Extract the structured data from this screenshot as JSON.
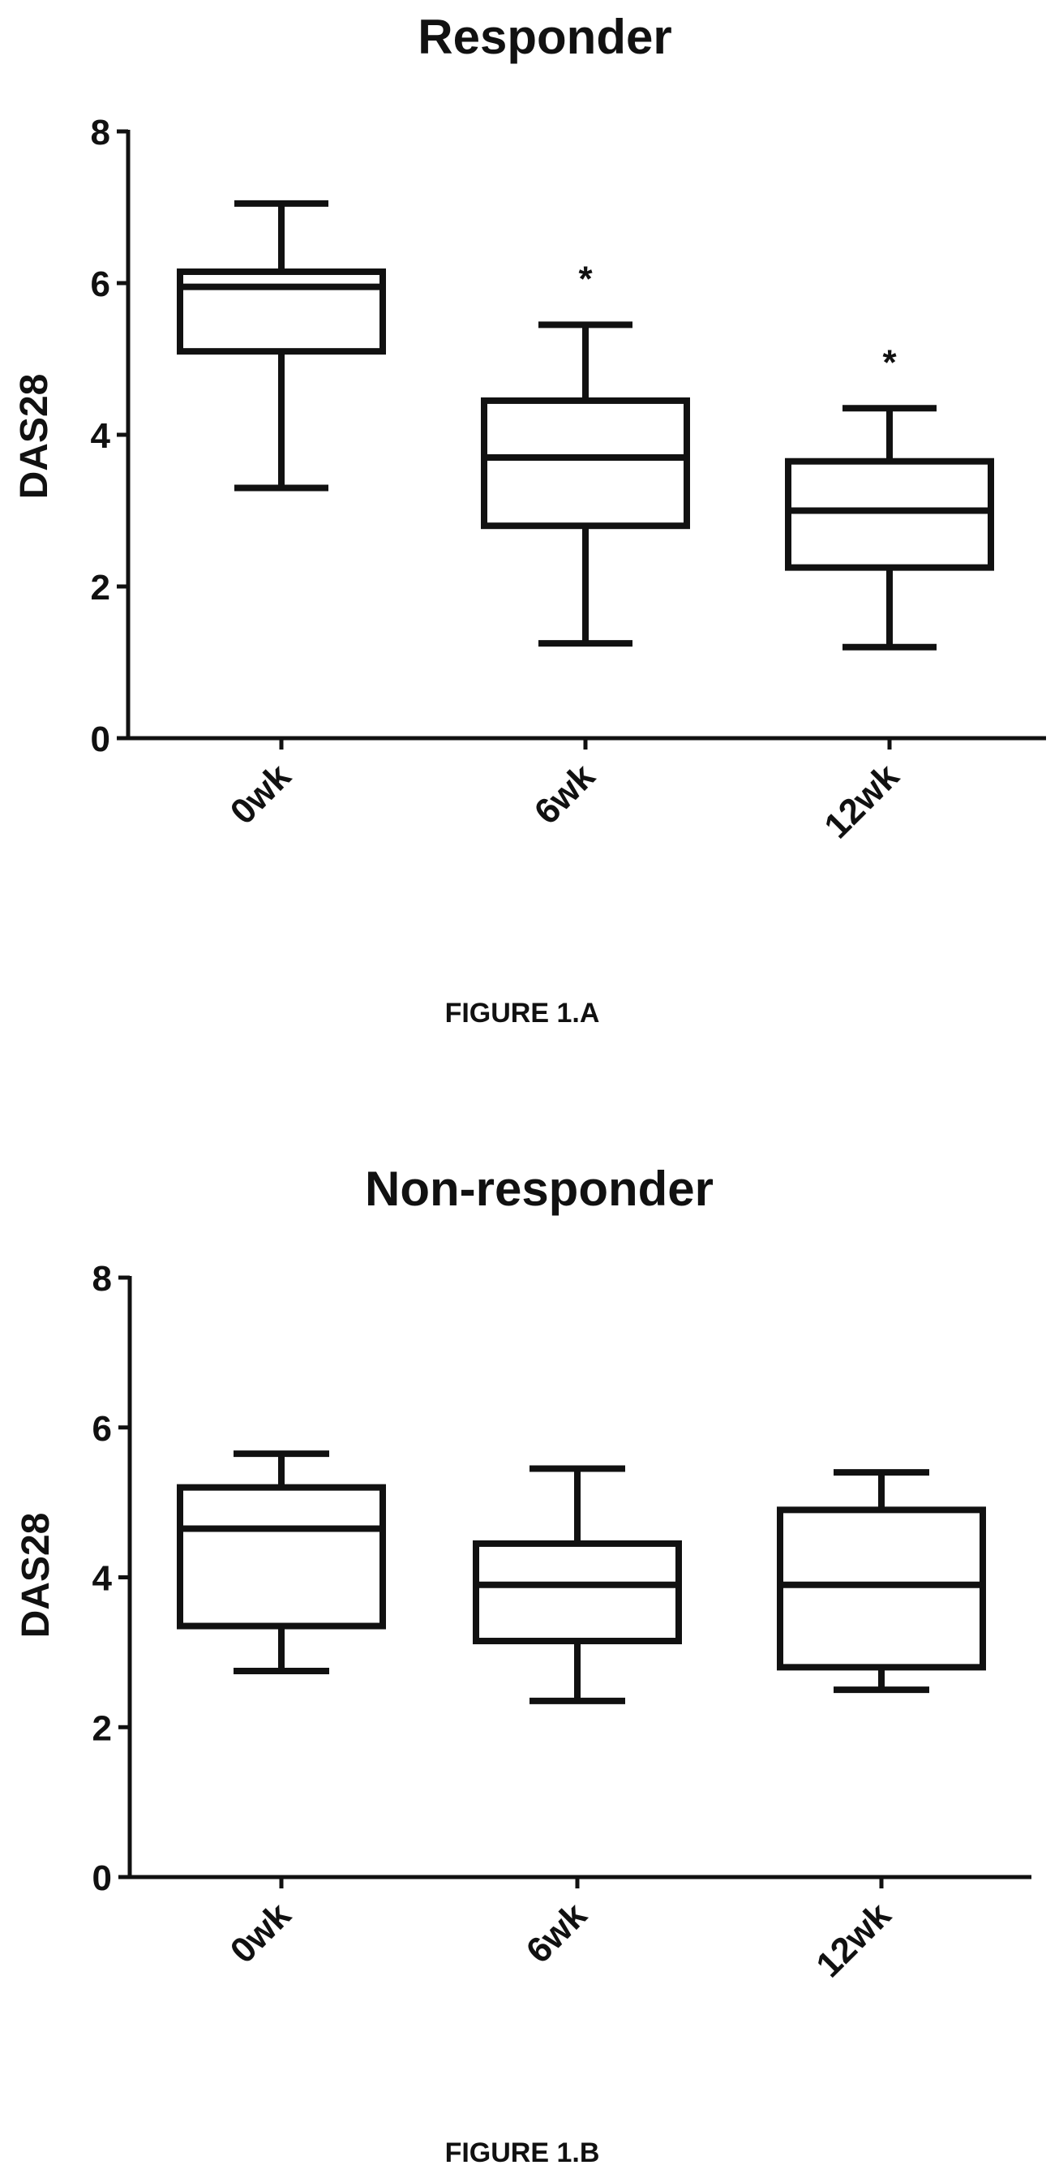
{
  "chart_data": [
    {
      "type": "box",
      "title": "Responder",
      "ylabel": "DAS28",
      "ylim": [
        0,
        8
      ],
      "yticks": [
        "0",
        "2",
        "4",
        "6",
        "8"
      ],
      "categories": [
        "0wk",
        "6wk",
        "12wk"
      ],
      "boxes": [
        {
          "category": "0wk",
          "min": 3.3,
          "q1": 5.1,
          "median": 5.95,
          "q3": 6.15,
          "max": 7.05,
          "sig": ""
        },
        {
          "category": "6wk",
          "min": 1.25,
          "q1": 2.8,
          "median": 3.7,
          "q3": 4.45,
          "max": 5.45,
          "sig": "*"
        },
        {
          "category": "12wk",
          "min": 1.2,
          "q1": 2.25,
          "median": 3.0,
          "q3": 3.65,
          "max": 4.35,
          "sig": "*"
        }
      ],
      "caption": "FIGURE 1.A"
    },
    {
      "type": "box",
      "title": "Non-responder",
      "ylabel": "DAS28",
      "ylim": [
        0,
        8
      ],
      "yticks": [
        "0",
        "2",
        "4",
        "6",
        "8"
      ],
      "categories": [
        "0wk",
        "6wk",
        "12wk"
      ],
      "boxes": [
        {
          "category": "0wk",
          "min": 2.75,
          "q1": 3.35,
          "median": 4.65,
          "q3": 5.2,
          "max": 5.65,
          "sig": ""
        },
        {
          "category": "6wk",
          "min": 2.35,
          "q1": 3.15,
          "median": 3.9,
          "q3": 4.45,
          "max": 5.45,
          "sig": ""
        },
        {
          "category": "12wk",
          "min": 2.5,
          "q1": 2.8,
          "median": 3.9,
          "q3": 4.9,
          "max": 5.4,
          "sig": ""
        }
      ],
      "caption": "FIGURE 1.B"
    }
  ]
}
